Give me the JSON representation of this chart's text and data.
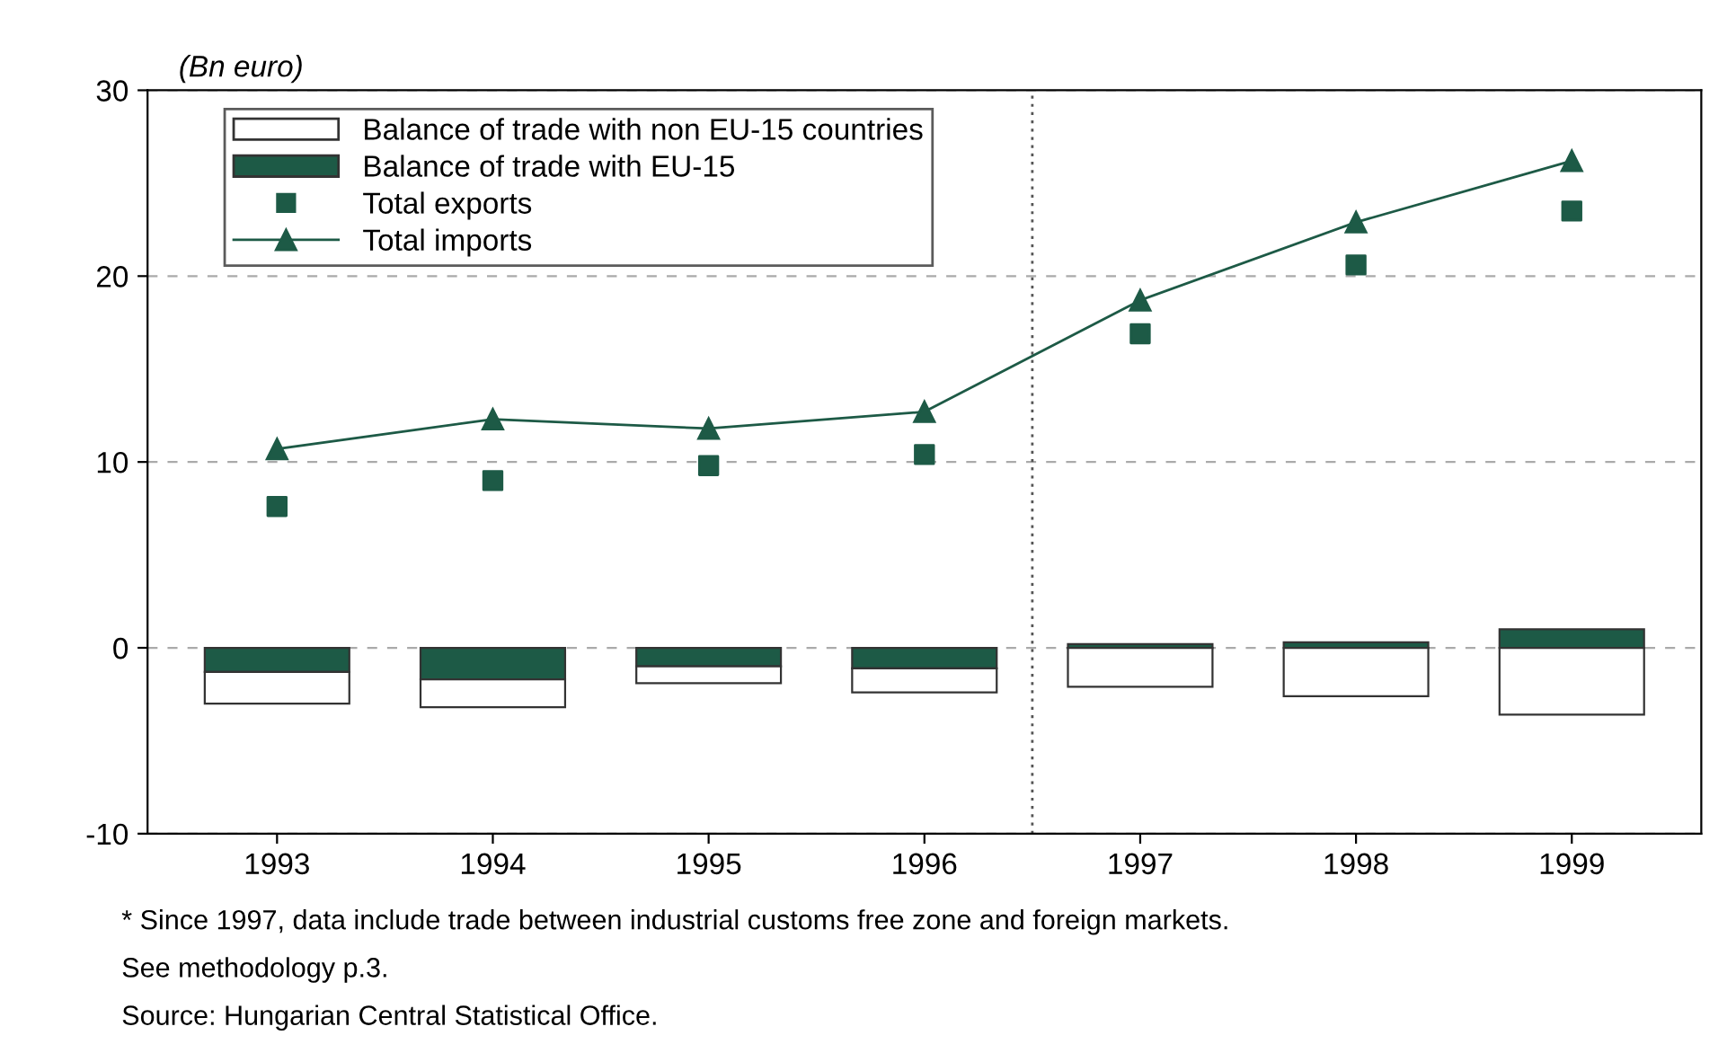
{
  "chart_data": {
    "type": "bar",
    "stacked": true,
    "ylabel": "(Bn euro)",
    "categories": [
      "1993",
      "1994",
      "1995",
      "1996",
      "1997",
      "1998",
      "1999"
    ],
    "series": [
      {
        "name": "Balance of trade with EU-15",
        "color": "#1d5a46",
        "values": [
          -1.3,
          -1.7,
          -1.0,
          -1.1,
          0.2,
          0.3,
          1.0
        ]
      },
      {
        "name": "Balance of trade with non EU-15 countries",
        "color": "#ffffff",
        "values": [
          -1.7,
          -1.5,
          -0.9,
          -1.3,
          -2.1,
          -2.6,
          -3.6
        ]
      },
      {
        "name": "Total exports",
        "type": "scatter",
        "marker": "square",
        "color": "#1d5a46",
        "values": [
          7.6,
          9.0,
          9.8,
          10.4,
          16.9,
          20.6,
          23.5
        ]
      },
      {
        "name": "Total imports",
        "type": "line",
        "marker": "triangle",
        "line_style": "solid",
        "color": "#1d5a46",
        "values": [
          10.7,
          12.3,
          11.8,
          12.7,
          18.7,
          22.9,
          26.2
        ]
      }
    ],
    "ylim": [
      -10,
      30
    ],
    "yticks": [
      -10,
      0,
      10,
      20,
      30
    ],
    "grid": "y",
    "legend": "top left",
    "annotations": [
      "* Since 1997, data include trade between industrial customs free zone and foreign markets.",
      "See methodology p.3.",
      "Source: Hungarian Central Statistical Office."
    ]
  }
}
